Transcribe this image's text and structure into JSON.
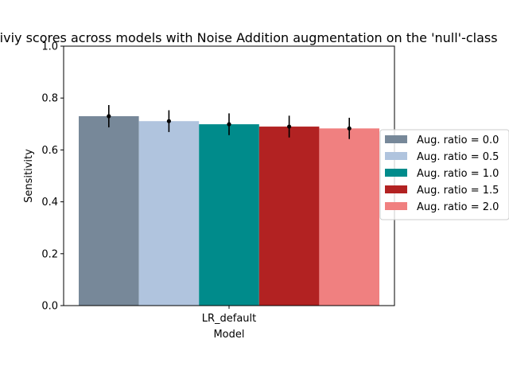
{
  "chart_data": {
    "type": "bar",
    "title": "Sensitiviy scores across models with Noise Addition augmentation on the 'null'-class",
    "xlabel": "Model",
    "ylabel": "Sensitivity",
    "categories": [
      "LR_default"
    ],
    "ylim": [
      0,
      1.0
    ],
    "yticks": [
      "0.0",
      "0.2",
      "0.4",
      "0.6",
      "0.8",
      "1.0"
    ],
    "legend_position": "right, outside plot",
    "grid": false,
    "series": [
      {
        "name": "Aug. ratio = 0.0",
        "values": [
          0.73
        ],
        "error": [
          0.043
        ],
        "color": "#778899"
      },
      {
        "name": "Aug. ratio = 0.5",
        "values": [
          0.711
        ],
        "error": [
          0.042
        ],
        "color": "#b0c4de"
      },
      {
        "name": "Aug. ratio = 1.0",
        "values": [
          0.699
        ],
        "error": [
          0.042
        ],
        "color": "#008b8b"
      },
      {
        "name": "Aug. ratio = 1.5",
        "values": [
          0.69
        ],
        "error": [
          0.042
        ],
        "color": "#b22222"
      },
      {
        "name": "Aug. ratio = 2.0",
        "values": [
          0.683
        ],
        "error": [
          0.041
        ],
        "color": "#f08080"
      }
    ]
  }
}
